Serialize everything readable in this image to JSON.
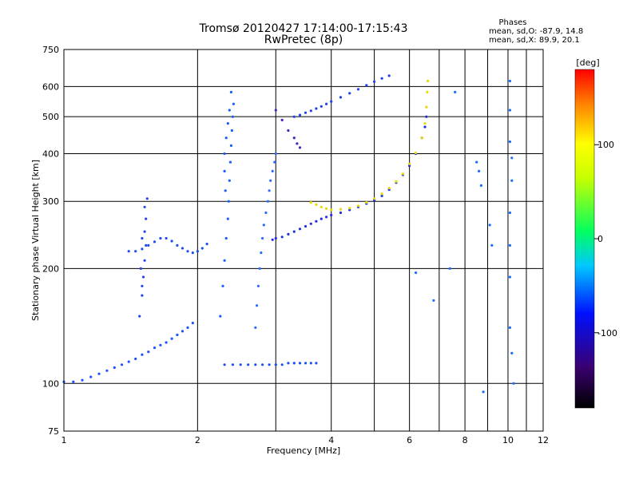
{
  "chart_data": {
    "type": "scatter",
    "title": "Tromsø 20120427 17:14:00-17:15:43",
    "subtitle": "RwPretec (8p)",
    "xlabel": "Frequency [MHz]",
    "ylabel": "Stationary phase Virtual Height [km]",
    "x_scale": "log",
    "y_scale": "log",
    "xlim": [
      1,
      12
    ],
    "ylim": [
      75,
      750
    ],
    "x_ticks": [
      1,
      2,
      4,
      6,
      8,
      10,
      12
    ],
    "x_tick_labels": [
      "1",
      "2",
      "4",
      "6",
      "8",
      "10",
      "12"
    ],
    "y_ticks": [
      75,
      100,
      200,
      300,
      400,
      500,
      600,
      750
    ],
    "y_tick_labels": [
      "75",
      "100",
      "200",
      "300",
      "400",
      "500",
      "600",
      "750"
    ],
    "grid": true,
    "phases_box": {
      "heading": "Phases",
      "line_o": "mean, sd,O: -87.9, 14.8",
      "line_x": "mean, sd,X:  89.9, 20.1"
    },
    "colorbar": {
      "label": "[deg]",
      "range": [
        -180,
        180
      ],
      "ticks": [
        100,
        0,
        -100
      ],
      "tick_labels": [
        "100",
        "0",
        "-100"
      ]
    },
    "series": [
      {
        "trace": "low-E-layer-trace",
        "color": "#2050ff",
        "points": [
          [
            1.0,
            101
          ],
          [
            1.05,
            101
          ],
          [
            1.1,
            102
          ],
          [
            1.15,
            104
          ],
          [
            1.2,
            106
          ],
          [
            1.25,
            108
          ],
          [
            1.3,
            110
          ],
          [
            1.35,
            112
          ],
          [
            1.4,
            114
          ],
          [
            1.45,
            116
          ],
          [
            1.5,
            119
          ],
          [
            1.55,
            121
          ],
          [
            1.6,
            124
          ],
          [
            1.65,
            126
          ],
          [
            1.7,
            128
          ],
          [
            1.75,
            131
          ],
          [
            1.8,
            134
          ],
          [
            1.85,
            137
          ],
          [
            1.9,
            140
          ],
          [
            1.95,
            144
          ]
        ]
      },
      {
        "trace": "spread-F-column-1.5MHz",
        "color": "#2244ee",
        "points": [
          [
            1.48,
            150
          ],
          [
            1.5,
            170
          ],
          [
            1.51,
            190
          ],
          [
            1.52,
            210
          ],
          [
            1.53,
            230
          ],
          [
            1.52,
            250
          ],
          [
            1.53,
            270
          ],
          [
            1.52,
            290
          ],
          [
            1.54,
            305
          ],
          [
            1.5,
            240
          ],
          [
            1.49,
            200
          ],
          [
            1.5,
            180
          ]
        ]
      },
      {
        "trace": "mid-trace-1.4-2.1MHz",
        "color": "#1e4fee",
        "points": [
          [
            1.4,
            222
          ],
          [
            1.45,
            222
          ],
          [
            1.5,
            225
          ],
          [
            1.55,
            230
          ],
          [
            1.6,
            235
          ],
          [
            1.65,
            240
          ],
          [
            1.7,
            240
          ],
          [
            1.75,
            236
          ],
          [
            1.8,
            230
          ],
          [
            1.85,
            226
          ],
          [
            1.9,
            222
          ],
          [
            1.95,
            220
          ],
          [
            2.0,
            222
          ],
          [
            2.05,
            226
          ],
          [
            2.1,
            232
          ]
        ]
      },
      {
        "trace": "spread-F-column-2.3MHz",
        "color": "#1a5cff",
        "points": [
          [
            2.25,
            150
          ],
          [
            2.28,
            180
          ],
          [
            2.3,
            210
          ],
          [
            2.32,
            240
          ],
          [
            2.34,
            270
          ],
          [
            2.35,
            300
          ],
          [
            2.36,
            340
          ],
          [
            2.37,
            380
          ],
          [
            2.38,
            420
          ],
          [
            2.39,
            460
          ],
          [
            2.4,
            500
          ],
          [
            2.41,
            540
          ],
          [
            2.38,
            580
          ],
          [
            2.36,
            520
          ],
          [
            2.34,
            480
          ],
          [
            2.32,
            440
          ],
          [
            2.3,
            400
          ],
          [
            2.3,
            360
          ],
          [
            2.31,
            320
          ]
        ]
      },
      {
        "trace": "spread-F-column-2.8MHz",
        "color": "#2a6cff",
        "points": [
          [
            2.7,
            140
          ],
          [
            2.72,
            160
          ],
          [
            2.74,
            180
          ],
          [
            2.76,
            200
          ],
          [
            2.78,
            220
          ],
          [
            2.8,
            240
          ],
          [
            2.82,
            260
          ],
          [
            2.85,
            280
          ],
          [
            2.88,
            300
          ],
          [
            2.9,
            320
          ],
          [
            2.92,
            340
          ],
          [
            2.95,
            360
          ],
          [
            2.98,
            380
          ],
          [
            3.0,
            400
          ]
        ]
      },
      {
        "trace": "F-trace-blue",
        "color": "#2030e0",
        "points": [
          [
            2.95,
            238
          ],
          [
            3.0,
            240
          ],
          [
            3.1,
            242
          ],
          [
            3.2,
            246
          ],
          [
            3.3,
            250
          ],
          [
            3.4,
            254
          ],
          [
            3.5,
            258
          ],
          [
            3.6,
            262
          ],
          [
            3.7,
            266
          ],
          [
            3.8,
            270
          ],
          [
            3.9,
            273
          ],
          [
            4.0,
            276
          ],
          [
            4.2,
            280
          ],
          [
            4.4,
            285
          ],
          [
            4.6,
            290
          ],
          [
            4.8,
            296
          ],
          [
            5.0,
            302
          ],
          [
            5.2,
            310
          ],
          [
            5.4,
            322
          ],
          [
            5.6,
            336
          ],
          [
            5.8,
            352
          ],
          [
            6.0,
            372
          ],
          [
            6.2,
            400
          ],
          [
            6.4,
            440
          ],
          [
            6.5,
            470
          ],
          [
            6.55,
            500
          ]
        ]
      },
      {
        "trace": "F-trace-yellow",
        "color": "#e8d800",
        "points": [
          [
            3.6,
            298
          ],
          [
            3.7,
            294
          ],
          [
            3.8,
            290
          ],
          [
            3.9,
            287
          ],
          [
            4.0,
            285
          ],
          [
            4.2,
            286
          ],
          [
            4.4,
            288
          ],
          [
            4.6,
            292
          ],
          [
            4.8,
            298
          ],
          [
            5.0,
            305
          ],
          [
            5.2,
            314
          ],
          [
            5.4,
            325
          ],
          [
            5.6,
            338
          ],
          [
            5.8,
            354
          ],
          [
            6.0,
            376
          ],
          [
            6.2,
            402
          ],
          [
            6.4,
            440
          ],
          [
            6.5,
            480
          ],
          [
            6.55,
            530
          ],
          [
            6.58,
            580
          ],
          [
            6.6,
            620
          ]
        ]
      },
      {
        "trace": "upper-F-trace",
        "color": "#2040e8",
        "points": [
          [
            3.3,
            500
          ],
          [
            3.4,
            505
          ],
          [
            3.5,
            512
          ],
          [
            3.6,
            518
          ],
          [
            3.7,
            525
          ],
          [
            3.8,
            532
          ],
          [
            3.9,
            540
          ],
          [
            4.0,
            548
          ],
          [
            4.2,
            562
          ],
          [
            4.4,
            576
          ],
          [
            4.6,
            590
          ],
          [
            4.8,
            604
          ],
          [
            5.0,
            618
          ],
          [
            5.2,
            630
          ],
          [
            5.4,
            640
          ]
        ]
      },
      {
        "trace": "oblique-spur",
        "color": "#4a20c0",
        "points": [
          [
            3.0,
            520
          ],
          [
            3.1,
            490
          ],
          [
            3.2,
            460
          ],
          [
            3.3,
            440
          ],
          [
            3.35,
            425
          ],
          [
            3.4,
            415
          ]
        ]
      },
      {
        "trace": "horizontal-110km-trace",
        "color": "#1a50ee",
        "points": [
          [
            2.3,
            112
          ],
          [
            2.4,
            112
          ],
          [
            2.5,
            112
          ],
          [
            2.6,
            112
          ],
          [
            2.7,
            112
          ],
          [
            2.8,
            112
          ],
          [
            2.9,
            112
          ],
          [
            3.0,
            112
          ],
          [
            3.1,
            112
          ],
          [
            3.2,
            113
          ],
          [
            3.3,
            113
          ],
          [
            3.4,
            113
          ],
          [
            3.5,
            113
          ],
          [
            3.6,
            113
          ],
          [
            3.7,
            113
          ]
        ]
      },
      {
        "trace": "scattered-points",
        "color": "#1a6cff",
        "points": [
          [
            8.5,
            380
          ],
          [
            8.6,
            360
          ],
          [
            8.7,
            330
          ],
          [
            9.1,
            260
          ],
          [
            9.2,
            230
          ],
          [
            10.1,
            620
          ],
          [
            10.1,
            520
          ],
          [
            10.1,
            430
          ],
          [
            10.2,
            390
          ],
          [
            10.2,
            340
          ],
          [
            10.1,
            280
          ],
          [
            10.1,
            230
          ],
          [
            10.1,
            190
          ],
          [
            10.1,
            140
          ],
          [
            10.2,
            120
          ],
          [
            10.3,
            100
          ],
          [
            8.8,
            95
          ],
          [
            7.6,
            580
          ],
          [
            7.4,
            200
          ],
          [
            6.8,
            165
          ],
          [
            6.2,
            195
          ]
        ]
      }
    ]
  }
}
